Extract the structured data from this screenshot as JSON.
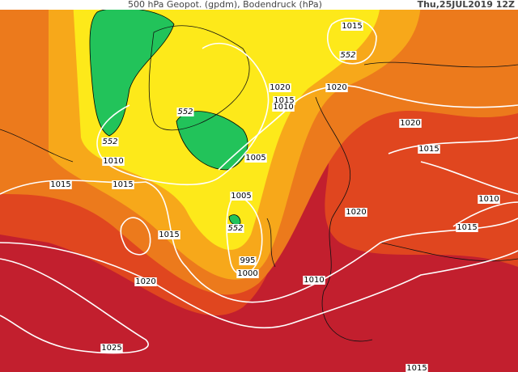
{
  "header": {
    "title": "500 hPa Geopot. (gpdm), Bodendruck (hPa)",
    "date": "Thu,25JUL2019 12Z"
  },
  "isobar_labels": [
    "1015",
    "1020",
    "1020",
    "1015",
    "1010",
    "1020",
    "1010",
    "1005",
    "1015",
    "1015",
    "1015",
    "1010",
    "1005",
    "1020",
    "1015",
    "1015",
    "995",
    "1000",
    "1010",
    "1020",
    "1025",
    "1015"
  ],
  "height_labels": [
    "552",
    "552",
    "552",
    "552"
  ]
}
